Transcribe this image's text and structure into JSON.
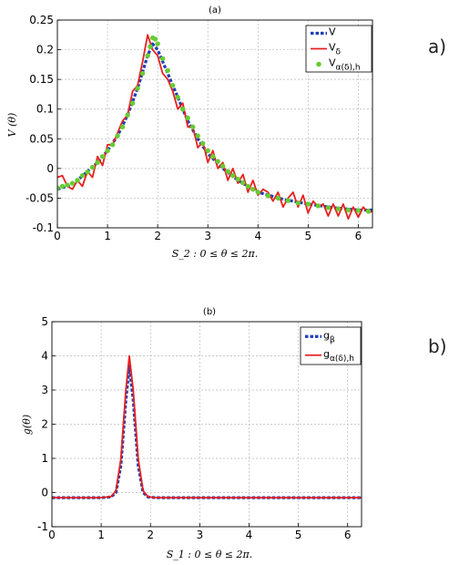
{
  "figure": {
    "panel_labels": [
      "a)",
      "b)"
    ]
  },
  "chart_data": [
    {
      "type": "line",
      "title": "(a)",
      "xlabel": "S_2 : 0 ≤ θ ≤ 2π.",
      "ylabel": "V (θ)",
      "xlim": [
        0,
        6.283
      ],
      "ylim": [
        -0.1,
        0.25
      ],
      "xticks": [
        "0",
        "1",
        "2",
        "3",
        "4",
        "5",
        "6"
      ],
      "yticks": [
        "-0.1",
        "-0.05",
        "0",
        "0.05",
        "0.1",
        "0.15",
        "0.2",
        "0.25"
      ],
      "grid": true,
      "legend_position": "top-right",
      "series": [
        {
          "name": "V",
          "style": "dashed",
          "color": "#1f3fb5",
          "points": [
            [
              0,
              -0.035
            ],
            [
              0.2,
              -0.03
            ],
            [
              0.4,
              -0.02
            ],
            [
              0.6,
              -0.005
            ],
            [
              0.8,
              0.01
            ],
            [
              1.0,
              0.03
            ],
            [
              1.2,
              0.055
            ],
            [
              1.4,
              0.09
            ],
            [
              1.6,
              0.135
            ],
            [
              1.8,
              0.19
            ],
            [
              1.9,
              0.21
            ],
            [
              2.0,
              0.2
            ],
            [
              2.2,
              0.16
            ],
            [
              2.4,
              0.12
            ],
            [
              2.6,
              0.08
            ],
            [
              2.8,
              0.05
            ],
            [
              3.0,
              0.025
            ],
            [
              3.3,
              0.0
            ],
            [
              3.6,
              -0.02
            ],
            [
              4.0,
              -0.04
            ],
            [
              4.5,
              -0.052
            ],
            [
              5.0,
              -0.06
            ],
            [
              5.5,
              -0.066
            ],
            [
              6.0,
              -0.07
            ],
            [
              6.283,
              -0.07
            ]
          ]
        },
        {
          "name": "V_δ",
          "style": "solid",
          "color": "#e8201e",
          "points": [
            [
              0,
              -0.015
            ],
            [
              0.1,
              -0.012
            ],
            [
              0.2,
              -0.03
            ],
            [
              0.3,
              -0.035
            ],
            [
              0.4,
              -0.02
            ],
            [
              0.5,
              -0.03
            ],
            [
              0.6,
              -0.005
            ],
            [
              0.7,
              -0.015
            ],
            [
              0.8,
              0.02
            ],
            [
              0.9,
              0.005
            ],
            [
              1.0,
              0.04
            ],
            [
              1.1,
              0.04
            ],
            [
              1.2,
              0.06
            ],
            [
              1.3,
              0.08
            ],
            [
              1.4,
              0.09
            ],
            [
              1.5,
              0.13
            ],
            [
              1.6,
              0.14
            ],
            [
              1.7,
              0.18
            ],
            [
              1.8,
              0.225
            ],
            [
              1.9,
              0.2
            ],
            [
              2.0,
              0.19
            ],
            [
              2.1,
              0.16
            ],
            [
              2.2,
              0.15
            ],
            [
              2.3,
              0.13
            ],
            [
              2.4,
              0.1
            ],
            [
              2.5,
              0.11
            ],
            [
              2.6,
              0.07
            ],
            [
              2.7,
              0.07
            ],
            [
              2.8,
              0.035
            ],
            [
              2.9,
              0.045
            ],
            [
              3.0,
              0.01
            ],
            [
              3.1,
              0.03
            ],
            [
              3.2,
              0.0
            ],
            [
              3.3,
              0.01
            ],
            [
              3.4,
              -0.02
            ],
            [
              3.5,
              0.0
            ],
            [
              3.6,
              -0.025
            ],
            [
              3.7,
              -0.01
            ],
            [
              3.8,
              -0.04
            ],
            [
              3.9,
              -0.02
            ],
            [
              4.0,
              -0.045
            ],
            [
              4.1,
              -0.035
            ],
            [
              4.2,
              -0.04
            ],
            [
              4.3,
              -0.055
            ],
            [
              4.4,
              -0.04
            ],
            [
              4.5,
              -0.065
            ],
            [
              4.6,
              -0.05
            ],
            [
              4.7,
              -0.04
            ],
            [
              4.8,
              -0.065
            ],
            [
              4.9,
              -0.045
            ],
            [
              5.0,
              -0.075
            ],
            [
              5.1,
              -0.055
            ],
            [
              5.2,
              -0.065
            ],
            [
              5.3,
              -0.06
            ],
            [
              5.4,
              -0.08
            ],
            [
              5.5,
              -0.06
            ],
            [
              5.6,
              -0.08
            ],
            [
              5.7,
              -0.06
            ],
            [
              5.8,
              -0.085
            ],
            [
              5.9,
              -0.065
            ],
            [
              6.0,
              -0.082
            ],
            [
              6.1,
              -0.065
            ],
            [
              6.2,
              -0.075
            ],
            [
              6.283,
              -0.072
            ]
          ]
        },
        {
          "name": "V_α(δ),h",
          "style": "markers",
          "color": "#66cc33",
          "points": [
            [
              0,
              -0.033
            ],
            [
              0.1,
              -0.03
            ],
            [
              0.2,
              -0.028
            ],
            [
              0.3,
              -0.025
            ],
            [
              0.4,
              -0.02
            ],
            [
              0.5,
              -0.012
            ],
            [
              0.6,
              -0.006
            ],
            [
              0.7,
              0.002
            ],
            [
              0.8,
              0.01
            ],
            [
              0.9,
              0.02
            ],
            [
              1.0,
              0.03
            ],
            [
              1.1,
              0.04
            ],
            [
              1.2,
              0.055
            ],
            [
              1.3,
              0.07
            ],
            [
              1.4,
              0.09
            ],
            [
              1.5,
              0.11
            ],
            [
              1.6,
              0.135
            ],
            [
              1.7,
              0.16
            ],
            [
              1.8,
              0.19
            ],
            [
              1.85,
              0.205
            ],
            [
              1.9,
              0.22
            ],
            [
              1.95,
              0.218
            ],
            [
              2.0,
              0.21
            ],
            [
              2.1,
              0.185
            ],
            [
              2.2,
              0.165
            ],
            [
              2.3,
              0.14
            ],
            [
              2.4,
              0.12
            ],
            [
              2.5,
              0.1
            ],
            [
              2.6,
              0.085
            ],
            [
              2.7,
              0.07
            ],
            [
              2.8,
              0.055
            ],
            [
              2.9,
              0.042
            ],
            [
              3.0,
              0.03
            ],
            [
              3.1,
              0.02
            ],
            [
              3.2,
              0.012
            ],
            [
              3.3,
              0.004
            ],
            [
              3.4,
              -0.005
            ],
            [
              3.5,
              -0.012
            ],
            [
              3.6,
              -0.018
            ],
            [
              3.7,
              -0.024
            ],
            [
              3.8,
              -0.03
            ],
            [
              3.9,
              -0.035
            ],
            [
              4.0,
              -0.04
            ],
            [
              4.2,
              -0.046
            ],
            [
              4.4,
              -0.05
            ],
            [
              4.6,
              -0.054
            ],
            [
              4.8,
              -0.058
            ],
            [
              5.0,
              -0.06
            ],
            [
              5.2,
              -0.063
            ],
            [
              5.4,
              -0.066
            ],
            [
              5.6,
              -0.068
            ],
            [
              5.8,
              -0.07
            ],
            [
              6.0,
              -0.071
            ],
            [
              6.2,
              -0.072
            ]
          ]
        }
      ]
    },
    {
      "type": "line",
      "title": "(b)",
      "xlabel": "S_1 : 0 ≤ θ ≤ 2π.",
      "ylabel": "g(θ)",
      "xlim": [
        0,
        6.283
      ],
      "ylim": [
        -1,
        5
      ],
      "xticks": [
        "0",
        "1",
        "2",
        "3",
        "4",
        "5",
        "6"
      ],
      "yticks": [
        "-1",
        "0",
        "1",
        "2",
        "3",
        "4",
        "5"
      ],
      "grid": true,
      "legend_position": "top-right",
      "series": [
        {
          "name": "g_β",
          "style": "dashed",
          "color": "#1f3fb5",
          "points": [
            [
              0,
              -0.15
            ],
            [
              1.0,
              -0.15
            ],
            [
              1.2,
              -0.13
            ],
            [
              1.3,
              0.0
            ],
            [
              1.4,
              0.8
            ],
            [
              1.5,
              2.7
            ],
            [
              1.57,
              3.7
            ],
            [
              1.65,
              2.7
            ],
            [
              1.75,
              0.8
            ],
            [
              1.85,
              0.0
            ],
            [
              1.95,
              -0.13
            ],
            [
              2.1,
              -0.15
            ],
            [
              6.283,
              -0.15
            ]
          ]
        },
        {
          "name": "g_α(δ),h",
          "style": "solid",
          "color": "#e8201e",
          "points": [
            [
              0,
              -0.15
            ],
            [
              1.0,
              -0.15
            ],
            [
              1.2,
              -0.12
            ],
            [
              1.3,
              0.05
            ],
            [
              1.4,
              1.0
            ],
            [
              1.5,
              3.0
            ],
            [
              1.57,
              4.0
            ],
            [
              1.65,
              3.0
            ],
            [
              1.75,
              1.0
            ],
            [
              1.85,
              0.05
            ],
            [
              1.95,
              -0.12
            ],
            [
              2.1,
              -0.15
            ],
            [
              6.283,
              -0.15
            ]
          ]
        }
      ]
    }
  ]
}
